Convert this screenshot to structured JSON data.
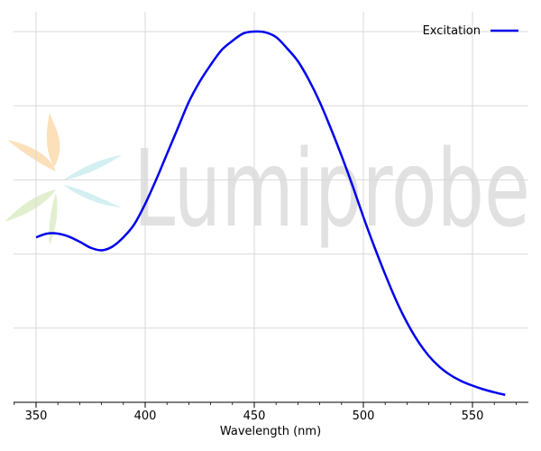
{
  "watermark": {
    "text": "Lumiprobe"
  },
  "chart_data": {
    "type": "line",
    "title": "",
    "xlabel": "Wavelength (nm)",
    "ylabel": "",
    "xlim": [
      340,
      574
    ],
    "ylim": [
      0,
      1.05
    ],
    "x_ticks": [
      350,
      400,
      450,
      500,
      550
    ],
    "x_minor_step": 10,
    "y_gridlines": [
      0.2,
      0.4,
      0.6,
      0.8,
      1.0
    ],
    "grid": true,
    "legend": "top-right",
    "series": [
      {
        "name": "Excitation",
        "color": "#0000ee",
        "x": [
          350,
          355,
          360,
          365,
          370,
          375,
          380,
          385,
          390,
          395,
          400,
          405,
          410,
          415,
          420,
          425,
          430,
          435,
          440,
          445,
          450,
          455,
          460,
          465,
          470,
          475,
          480,
          485,
          490,
          495,
          500,
          505,
          510,
          515,
          520,
          525,
          530,
          535,
          540,
          545,
          550,
          555,
          560,
          565
        ],
        "y": [
          0.445,
          0.455,
          0.455,
          0.447,
          0.433,
          0.417,
          0.41,
          0.42,
          0.445,
          0.48,
          0.535,
          0.6,
          0.67,
          0.74,
          0.81,
          0.865,
          0.91,
          0.95,
          0.975,
          0.995,
          1.0,
          0.998,
          0.985,
          0.955,
          0.92,
          0.87,
          0.81,
          0.74,
          0.665,
          0.585,
          0.5,
          0.42,
          0.345,
          0.275,
          0.215,
          0.165,
          0.125,
          0.095,
          0.073,
          0.057,
          0.045,
          0.035,
          0.027,
          0.02
        ]
      }
    ]
  }
}
